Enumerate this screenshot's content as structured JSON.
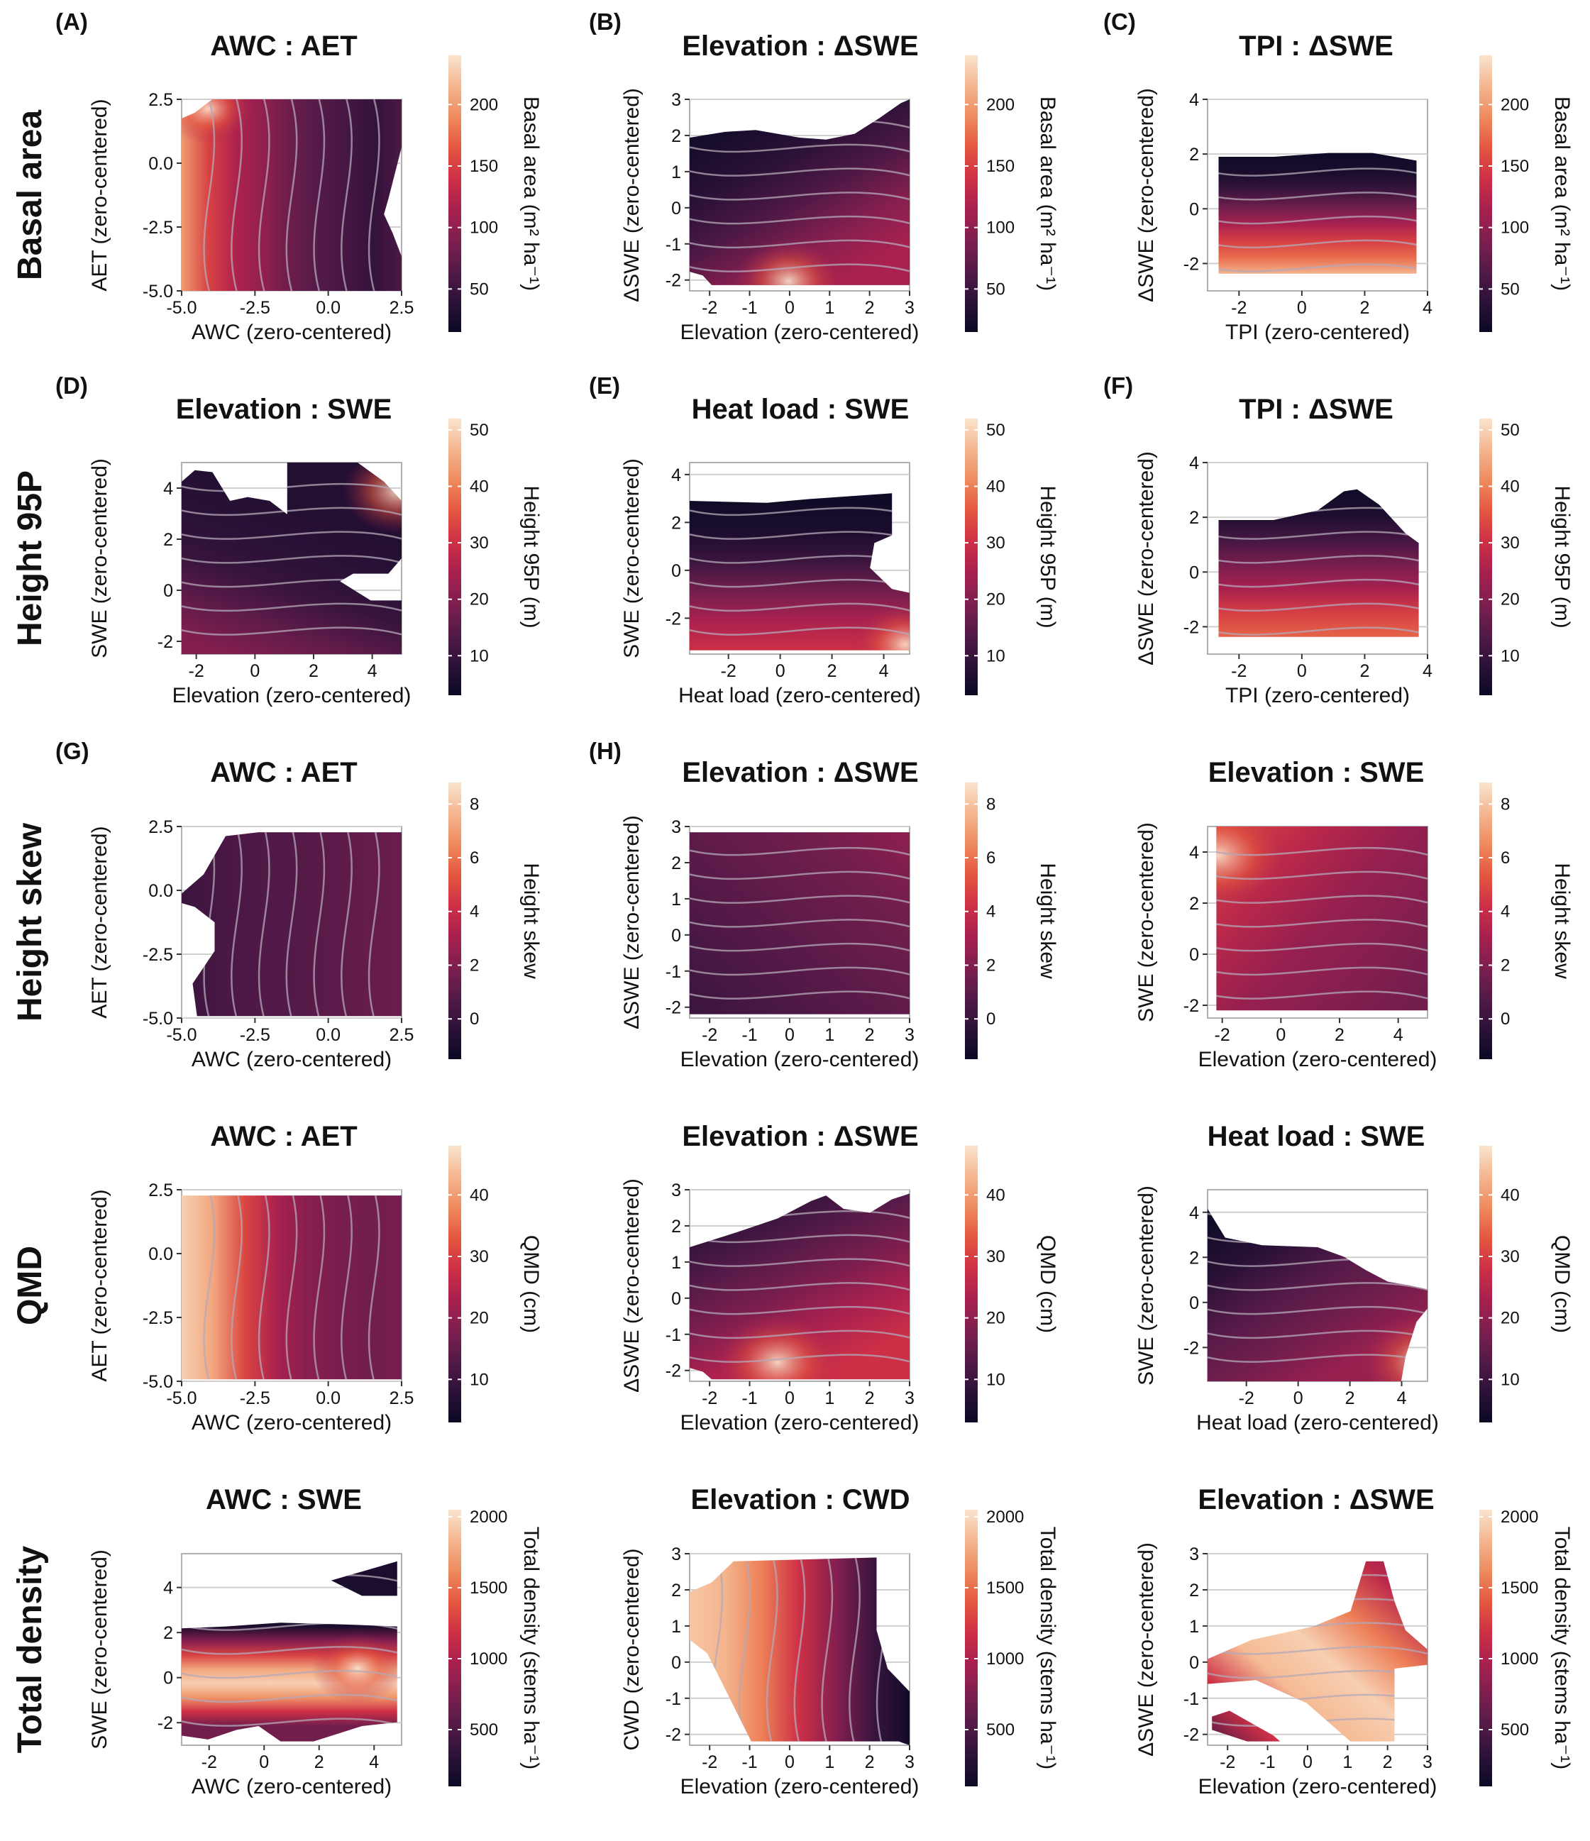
{
  "figure": {
    "row_labels": [
      "Basal area",
      "Height 95P",
      "Height skew",
      "QMD",
      "Total density"
    ],
    "palette": [
      "#0b0924",
      "#2c1238",
      "#541a48",
      "#7e1f4f",
      "#a8204f",
      "#ce3045",
      "#e4573f",
      "#ee8b5f",
      "#f4b68f",
      "#fae4ce"
    ],
    "frame_color": "#b0b0b0",
    "contour_color": "#b4a8b8"
  },
  "chart_data": [
    {
      "id": "A",
      "panel_label": "(A)",
      "type": "heatmap",
      "title": "AWC : AET",
      "xlabel": "AWC (zero-centered)",
      "ylabel": "AET (zero-centered)",
      "xlim": [
        -5.0,
        2.5
      ],
      "ylim": [
        -5.0,
        2.5
      ],
      "xticks": [
        "-5.0",
        "-2.5",
        "0.0",
        "2.5"
      ],
      "yticks": [
        "-5.0",
        "-2.5",
        "0.0",
        "2.5"
      ],
      "colorbar_label": "Basal area (m² ha⁻¹)",
      "colorbar_ticks": [
        "50",
        "100",
        "150",
        "200"
      ],
      "value_range": [
        15,
        240
      ]
    },
    {
      "id": "B",
      "panel_label": "(B)",
      "type": "heatmap",
      "title": "Elevation : ΔSWE",
      "xlabel": "Elevation (zero-centered)",
      "ylabel": "ΔSWE (zero-centered)",
      "xlim": [
        -2.5,
        3
      ],
      "ylim": [
        -2.3,
        3
      ],
      "xticks": [
        "-2",
        "-1",
        "0",
        "1",
        "2",
        "3"
      ],
      "yticks": [
        "-2",
        "-1",
        "0",
        "1",
        "2",
        "3"
      ],
      "colorbar_label": "Basal area (m² ha⁻¹)",
      "colorbar_ticks": [
        "50",
        "100",
        "150",
        "200"
      ],
      "value_range": [
        15,
        240
      ]
    },
    {
      "id": "C",
      "panel_label": "(C)",
      "type": "heatmap",
      "title": "TPI : ΔSWE",
      "xlabel": "TPI (zero-centered)",
      "ylabel": "ΔSWE (zero-centered)",
      "xlim": [
        -3,
        4
      ],
      "ylim": [
        -3,
        4
      ],
      "xticks": [
        "-2",
        "0",
        "2",
        "4"
      ],
      "yticks": [
        "-2",
        "0",
        "2",
        "4"
      ],
      "colorbar_label": "Basal area (m² ha⁻¹)",
      "colorbar_ticks": [
        "50",
        "100",
        "150",
        "200"
      ],
      "value_range": [
        15,
        240
      ]
    },
    {
      "id": "D",
      "panel_label": "(D)",
      "type": "heatmap",
      "title": "Elevation : SWE",
      "xlabel": "Elevation (zero-centered)",
      "ylabel": "SWE (zero-centered)",
      "xlim": [
        -2.5,
        5
      ],
      "ylim": [
        -2.5,
        5
      ],
      "xticks": [
        "-2",
        "0",
        "2",
        "4"
      ],
      "yticks": [
        "-2",
        "0",
        "2",
        "4"
      ],
      "colorbar_label": "Height 95P (m)",
      "colorbar_ticks": [
        "10",
        "20",
        "30",
        "40",
        "50"
      ],
      "value_range": [
        3,
        52
      ]
    },
    {
      "id": "E",
      "panel_label": "(E)",
      "type": "heatmap",
      "title": "Heat load : SWE",
      "xlabel": "Heat load (zero-centered)",
      "ylabel": "SWE (zero-centered)",
      "xlim": [
        -3.5,
        5
      ],
      "ylim": [
        -3.5,
        4.5
      ],
      "xticks": [
        "-2",
        "0",
        "2",
        "4"
      ],
      "yticks": [
        "-2",
        "0",
        "2",
        "4"
      ],
      "colorbar_label": "Height 95P (m)",
      "colorbar_ticks": [
        "10",
        "20",
        "30",
        "40",
        "50"
      ],
      "value_range": [
        3,
        52
      ]
    },
    {
      "id": "F",
      "panel_label": "(F)",
      "type": "heatmap",
      "title": "TPI : ΔSWE",
      "xlabel": "TPI (zero-centered)",
      "ylabel": "ΔSWE (zero-centered)",
      "xlim": [
        -3,
        4
      ],
      "ylim": [
        -3,
        4
      ],
      "xticks": [
        "-2",
        "0",
        "2",
        "4"
      ],
      "yticks": [
        "-2",
        "0",
        "2",
        "4"
      ],
      "colorbar_label": "Height 95P (m)",
      "colorbar_ticks": [
        "10",
        "20",
        "30",
        "40",
        "50"
      ],
      "value_range": [
        3,
        52
      ]
    },
    {
      "id": "G",
      "panel_label": "(G)",
      "type": "heatmap",
      "title": "AWC : AET",
      "xlabel": "AWC (zero-centered)",
      "ylabel": "AET (zero-centered)",
      "xlim": [
        -5.0,
        2.5
      ],
      "ylim": [
        -5.0,
        2.5
      ],
      "xticks": [
        "-5.0",
        "-2.5",
        "0.0",
        "2.5"
      ],
      "yticks": [
        "-5.0",
        "-2.5",
        "0.0",
        "2.5"
      ],
      "colorbar_label": "Height skew",
      "colorbar_ticks": [
        "0",
        "2",
        "4",
        "6",
        "8"
      ],
      "value_range": [
        -1.5,
        8.8
      ]
    },
    {
      "id": "H",
      "panel_label": "(H)",
      "type": "heatmap",
      "title": "Elevation : ΔSWE",
      "xlabel": "Elevation (zero-centered)",
      "ylabel": "ΔSWE (zero-centered)",
      "xlim": [
        -2.5,
        3
      ],
      "ylim": [
        -2.3,
        3
      ],
      "xticks": [
        "-2",
        "-1",
        "0",
        "1",
        "2",
        "3"
      ],
      "yticks": [
        "-2",
        "-1",
        "0",
        "1",
        "2",
        "3"
      ],
      "colorbar_label": "Height skew",
      "colorbar_ticks": [
        "0",
        "2",
        "4",
        "6",
        "8"
      ],
      "value_range": [
        -1.5,
        8.8
      ]
    },
    {
      "id": "I",
      "panel_label": "",
      "type": "heatmap",
      "title": "Elevation : SWE",
      "xlabel": "Elevation (zero-centered)",
      "ylabel": "SWE (zero-centered)",
      "xlim": [
        -2.5,
        5
      ],
      "ylim": [
        -2.5,
        5
      ],
      "xticks": [
        "-2",
        "0",
        "2",
        "4"
      ],
      "yticks": [
        "-2",
        "0",
        "2",
        "4"
      ],
      "colorbar_label": "Height skew",
      "colorbar_ticks": [
        "0",
        "2",
        "4",
        "6",
        "8"
      ],
      "value_range": [
        -1.5,
        8.8
      ]
    },
    {
      "id": "J",
      "panel_label": "",
      "type": "heatmap",
      "title": "AWC : AET",
      "xlabel": "AWC (zero-centered)",
      "ylabel": "AET (zero-centered)",
      "xlim": [
        -5.0,
        2.5
      ],
      "ylim": [
        -5.0,
        2.5
      ],
      "xticks": [
        "-5.0",
        "-2.5",
        "0.0",
        "2.5"
      ],
      "yticks": [
        "-5.0",
        "-2.5",
        "0.0",
        "2.5"
      ],
      "colorbar_label": "QMD (cm)",
      "colorbar_ticks": [
        "10",
        "20",
        "30",
        "40"
      ],
      "value_range": [
        3,
        48
      ]
    },
    {
      "id": "K",
      "panel_label": "",
      "type": "heatmap",
      "title": "Elevation : ΔSWE",
      "xlabel": "Elevation (zero-centered)",
      "ylabel": "ΔSWE (zero-centered)",
      "xlim": [
        -2.5,
        3
      ],
      "ylim": [
        -2.3,
        3
      ],
      "xticks": [
        "-2",
        "-1",
        "0",
        "1",
        "2",
        "3"
      ],
      "yticks": [
        "-2",
        "-1",
        "0",
        "1",
        "2",
        "3"
      ],
      "colorbar_label": "QMD (cm)",
      "colorbar_ticks": [
        "10",
        "20",
        "30",
        "40"
      ],
      "value_range": [
        3,
        48
      ]
    },
    {
      "id": "L",
      "panel_label": "",
      "type": "heatmap",
      "title": "Heat load : SWE",
      "xlabel": "Heat load (zero-centered)",
      "ylabel": "SWE (zero-centered)",
      "xlim": [
        -3.5,
        5
      ],
      "ylim": [
        -3.5,
        5
      ],
      "xticks": [
        "-2",
        "0",
        "2",
        "4"
      ],
      "yticks": [
        "-2",
        "0",
        "2",
        "4"
      ],
      "colorbar_label": "QMD (cm)",
      "colorbar_ticks": [
        "10",
        "20",
        "30",
        "40"
      ],
      "value_range": [
        3,
        48
      ]
    },
    {
      "id": "M",
      "panel_label": "",
      "type": "heatmap",
      "title": "AWC : SWE",
      "xlabel": "AWC (zero-centered)",
      "ylabel": "SWE (zero-centered)",
      "xlim": [
        -3,
        5
      ],
      "ylim": [
        -3,
        5.5
      ],
      "xticks": [
        "-2",
        "0",
        "2",
        "4"
      ],
      "yticks": [
        "-2",
        "0",
        "2",
        "4"
      ],
      "colorbar_label": "Total density (stems ha⁻¹)",
      "colorbar_ticks": [
        "500",
        "1000",
        "1500",
        "2000"
      ],
      "value_range": [
        100,
        2050
      ]
    },
    {
      "id": "N",
      "panel_label": "",
      "type": "heatmap",
      "title": "Elevation : CWD",
      "xlabel": "Elevation (zero-centered)",
      "ylabel": "CWD (zero-centered)",
      "xlim": [
        -2.5,
        3
      ],
      "ylim": [
        -2.3,
        3
      ],
      "xticks": [
        "-2",
        "-1",
        "0",
        "1",
        "2",
        "3"
      ],
      "yticks": [
        "-2",
        "-1",
        "0",
        "1",
        "2",
        "3"
      ],
      "colorbar_label": "Total density (stems ha⁻¹)",
      "colorbar_ticks": [
        "500",
        "1000",
        "1500",
        "2000"
      ],
      "value_range": [
        100,
        2050
      ]
    },
    {
      "id": "O",
      "panel_label": "",
      "type": "heatmap",
      "title": "Elevation : ΔSWE",
      "xlabel": "Elevation (zero-centered)",
      "ylabel": "ΔSWE (zero-centered)",
      "xlim": [
        -2.5,
        3
      ],
      "ylim": [
        -2.3,
        3
      ],
      "xticks": [
        "-2",
        "-1",
        "0",
        "1",
        "2",
        "3"
      ],
      "yticks": [
        "-2",
        "-1",
        "0",
        "1",
        "2",
        "3"
      ],
      "colorbar_label": "Total density (stems ha⁻¹)",
      "colorbar_ticks": [
        "500",
        "1000",
        "1500",
        "2000"
      ],
      "value_range": [
        100,
        2050
      ]
    }
  ]
}
